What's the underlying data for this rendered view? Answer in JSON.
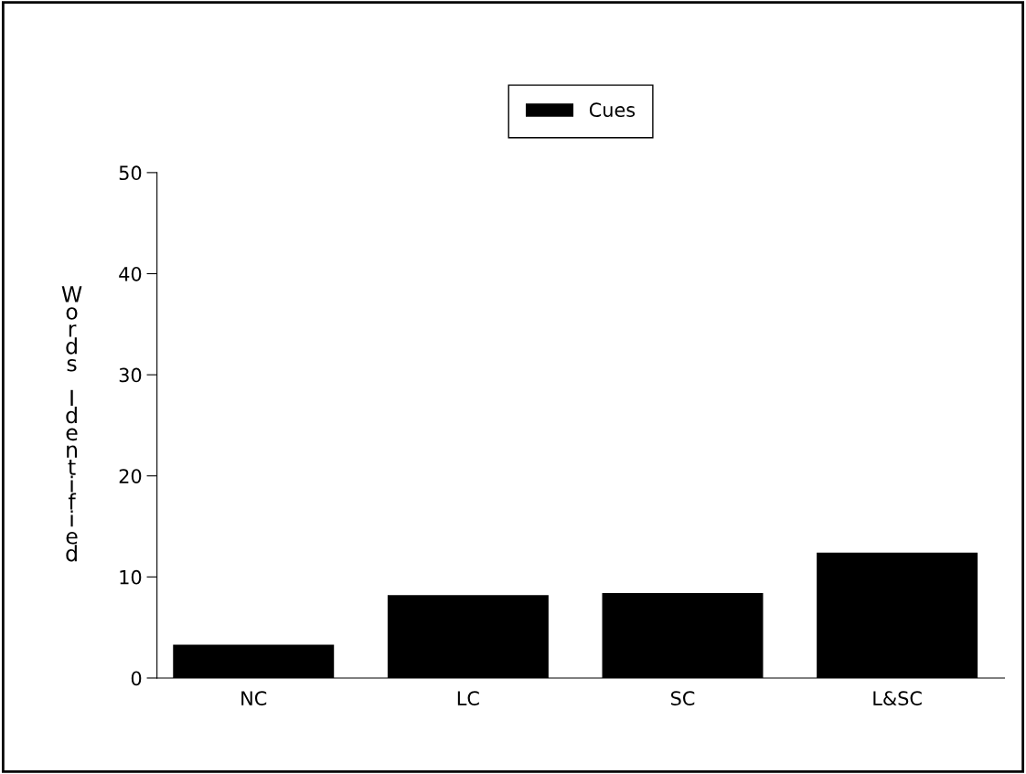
{
  "chart_data": {
    "type": "bar",
    "ylabel": "Words Identified",
    "categories": [
      "NC",
      "LC",
      "SC",
      "L&SC"
    ],
    "series": [
      {
        "name": "Cues",
        "color": "#000000",
        "values": [
          3.3,
          8.2,
          8.4,
          12.4
        ]
      }
    ],
    "ylim": [
      0,
      50
    ],
    "yticks": [
      0,
      10,
      20,
      30,
      40,
      50
    ],
    "grid": false,
    "legend": "top"
  }
}
